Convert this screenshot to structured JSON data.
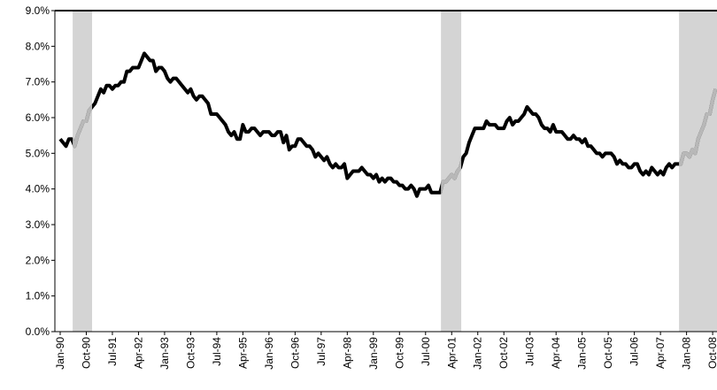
{
  "chart_data": {
    "type": "line",
    "categories": [
      "Jan-90",
      null,
      null,
      null,
      null,
      null,
      null,
      null,
      null,
      "Oct-90",
      null,
      null,
      null,
      null,
      null,
      null,
      null,
      null,
      "Jul-91",
      null,
      null,
      null,
      null,
      null,
      null,
      null,
      null,
      "Apr-92",
      null,
      null,
      null,
      null,
      null,
      null,
      null,
      null,
      "Jan-93",
      null,
      null,
      null,
      null,
      null,
      null,
      null,
      null,
      "Oct-93",
      null,
      null,
      null,
      null,
      null,
      null,
      null,
      null,
      "Jul-94",
      null,
      null,
      null,
      null,
      null,
      null,
      null,
      null,
      "Apr-95",
      null,
      null,
      null,
      null,
      null,
      null,
      null,
      null,
      "Jan-96",
      null,
      null,
      null,
      null,
      null,
      null,
      null,
      null,
      "Oct-96",
      null,
      null,
      null,
      null,
      null,
      null,
      null,
      null,
      "Jul-97",
      null,
      null,
      null,
      null,
      null,
      null,
      null,
      null,
      "Apr-98",
      null,
      null,
      null,
      null,
      null,
      null,
      null,
      null,
      "Jan-99",
      null,
      null,
      null,
      null,
      null,
      null,
      null,
      null,
      "Oct-99",
      null,
      null,
      null,
      null,
      null,
      null,
      null,
      null,
      "Jul-00",
      null,
      null,
      null,
      null,
      null,
      null,
      null,
      null,
      "Apr-01",
      null,
      null,
      null,
      null,
      null,
      null,
      null,
      null,
      "Jan-02",
      null,
      null,
      null,
      null,
      null,
      null,
      null,
      null,
      "Oct-02",
      null,
      null,
      null,
      null,
      null,
      null,
      null,
      null,
      "Jul-03",
      null,
      null,
      null,
      null,
      null,
      null,
      null,
      null,
      "Apr-04",
      null,
      null,
      null,
      null,
      null,
      null,
      null,
      null,
      "Jan-05",
      null,
      null,
      null,
      null,
      null,
      null,
      null,
      null,
      "Oct-05",
      null,
      null,
      null,
      null,
      null,
      null,
      null,
      null,
      "Jul-06",
      null,
      null,
      null,
      null,
      null,
      null,
      null,
      null,
      "Apr-07",
      null,
      null,
      null,
      null,
      null,
      null,
      null,
      null,
      "Jan-08",
      null,
      null,
      null,
      null,
      null,
      null,
      null,
      null,
      "Oct-08",
      null
    ],
    "series": [
      {
        "color": "#000000",
        "shaded_color": "#b8b8b8",
        "values": [
          5.4,
          5.3,
          5.2,
          5.4,
          5.4,
          5.2,
          5.5,
          5.7,
          5.9,
          5.9,
          6.2,
          6.3,
          6.4,
          6.6,
          6.8,
          6.7,
          6.9,
          6.9,
          6.8,
          6.9,
          6.9,
          7.0,
          7.0,
          7.3,
          7.3,
          7.4,
          7.4,
          7.4,
          7.6,
          7.8,
          7.7,
          7.6,
          7.6,
          7.3,
          7.4,
          7.4,
          7.3,
          7.1,
          7.0,
          7.1,
          7.1,
          7.0,
          6.9,
          6.8,
          6.7,
          6.8,
          6.6,
          6.5,
          6.6,
          6.6,
          6.5,
          6.4,
          6.1,
          6.1,
          6.1,
          6.0,
          5.9,
          5.8,
          5.6,
          5.5,
          5.6,
          5.4,
          5.4,
          5.8,
          5.6,
          5.6,
          5.7,
          5.7,
          5.6,
          5.5,
          5.6,
          5.6,
          5.6,
          5.5,
          5.5,
          5.6,
          5.6,
          5.3,
          5.5,
          5.1,
          5.2,
          5.2,
          5.4,
          5.4,
          5.3,
          5.2,
          5.2,
          5.1,
          4.9,
          5.0,
          4.9,
          4.8,
          4.9,
          4.7,
          4.6,
          4.7,
          4.6,
          4.6,
          4.7,
          4.3,
          4.4,
          4.5,
          4.5,
          4.5,
          4.6,
          4.5,
          4.4,
          4.4,
          4.3,
          4.4,
          4.2,
          4.3,
          4.2,
          4.3,
          4.3,
          4.2,
          4.2,
          4.1,
          4.1,
          4.0,
          4.0,
          4.1,
          4.0,
          3.8,
          4.0,
          4.0,
          4.0,
          4.1,
          3.9,
          3.9,
          3.9,
          3.9,
          4.2,
          4.2,
          4.3,
          4.4,
          4.3,
          4.5,
          4.6,
          4.9,
          5.0,
          5.3,
          5.5,
          5.7,
          5.7,
          5.7,
          5.7,
          5.9,
          5.8,
          5.8,
          5.8,
          5.7,
          5.7,
          5.7,
          5.9,
          6.0,
          5.8,
          5.9,
          5.9,
          6.0,
          6.1,
          6.3,
          6.2,
          6.1,
          6.1,
          6.0,
          5.8,
          5.7,
          5.7,
          5.6,
          5.8,
          5.6,
          5.6,
          5.6,
          5.5,
          5.4,
          5.4,
          5.5,
          5.4,
          5.4,
          5.3,
          5.4,
          5.2,
          5.2,
          5.1,
          5.0,
          5.0,
          4.9,
          5.0,
          5.0,
          5.0,
          4.9,
          4.7,
          4.8,
          4.7,
          4.7,
          4.6,
          4.6,
          4.7,
          4.7,
          4.5,
          4.4,
          4.5,
          4.4,
          4.6,
          4.5,
          4.4,
          4.5,
          4.4,
          4.6,
          4.7,
          4.6,
          4.7,
          4.7,
          4.7,
          5.0,
          5.0,
          4.9,
          5.1,
          5.0,
          5.4,
          5.6,
          5.8,
          6.1,
          6.1,
          6.5,
          6.8
        ]
      }
    ],
    "shaded_ranges": [
      [
        4.3,
        11
      ],
      [
        131.3,
        138.3
      ],
      [
        213.4,
        226.5
      ]
    ],
    "shade_color": "#d4d4d4",
    "ylim": [
      0,
      9
    ],
    "yticks": [
      {
        "value": 0,
        "label": "0.0%"
      },
      {
        "value": 1,
        "label": "1.0%"
      },
      {
        "value": 2,
        "label": "2.0%"
      },
      {
        "value": 3,
        "label": "3.0%"
      },
      {
        "value": 4,
        "label": "4.0%"
      },
      {
        "value": 5,
        "label": "5.0%"
      },
      {
        "value": 6,
        "label": "6.0%"
      },
      {
        "value": 7,
        "label": "7.0%"
      },
      {
        "value": 8,
        "label": "8.0%"
      },
      {
        "value": 9,
        "label": "9.0%"
      }
    ],
    "grid": false
  }
}
